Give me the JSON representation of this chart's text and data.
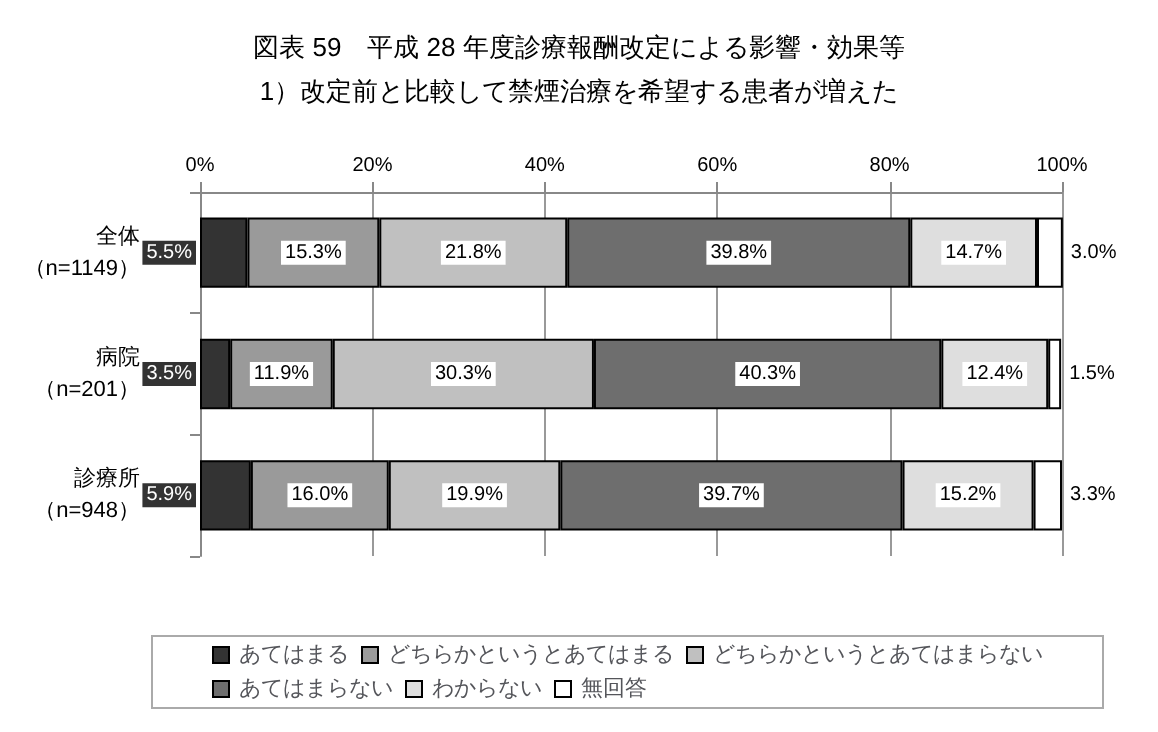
{
  "chart_data": {
    "type": "bar",
    "orientation": "horizontal",
    "stacked": true,
    "title": "図表 59　平成 28 年度診療報酬改定による影響・効果等",
    "subtitle": "1）改定前と比較して禁煙治療を希望する患者が増えた",
    "categories": [
      "全体（n=1149）",
      "病院（n=201）",
      "診療所（n=948）"
    ],
    "series": [
      {
        "name": "あてはまる",
        "color": "#333333",
        "values": [
          5.5,
          3.5,
          5.9
        ],
        "value_labels": [
          "5.5%",
          "3.5%",
          "5.9%"
        ]
      },
      {
        "name": "どちらかというとあてはまる",
        "color": "#9a9a9a",
        "values": [
          15.3,
          11.9,
          16.0
        ],
        "value_labels": [
          "15.3%",
          "11.9%",
          "16.0%"
        ]
      },
      {
        "name": "どちらかというとあてはまらない",
        "color": "#c0c0c0",
        "values": [
          21.8,
          30.3,
          19.9
        ],
        "value_labels": [
          "21.8%",
          "30.3%",
          "19.9%"
        ]
      },
      {
        "name": "あてはまらない",
        "color": "#6e6e6e",
        "values": [
          39.8,
          40.3,
          39.7
        ],
        "value_labels": [
          "39.8%",
          "40.3%",
          "39.7%"
        ]
      },
      {
        "name": "わからない",
        "color": "#dedede",
        "values": [
          14.7,
          12.4,
          15.2
        ],
        "value_labels": [
          "14.7%",
          "12.4%",
          "15.2%"
        ]
      },
      {
        "name": "無回答",
        "color": "#ffffff",
        "values": [
          3.0,
          1.5,
          3.3
        ],
        "value_labels": [
          "3.0%",
          "1.5%",
          "3.3%"
        ]
      }
    ],
    "xlim": [
      0,
      100
    ],
    "xticks": [
      {
        "value": 0,
        "label": "0%"
      },
      {
        "value": 20,
        "label": "20%"
      },
      {
        "value": 40,
        "label": "40%"
      },
      {
        "value": 60,
        "label": "60%"
      },
      {
        "value": 80,
        "label": "80%"
      },
      {
        "value": 100,
        "label": "100%"
      }
    ],
    "grid": "x",
    "legend": "bottom"
  }
}
